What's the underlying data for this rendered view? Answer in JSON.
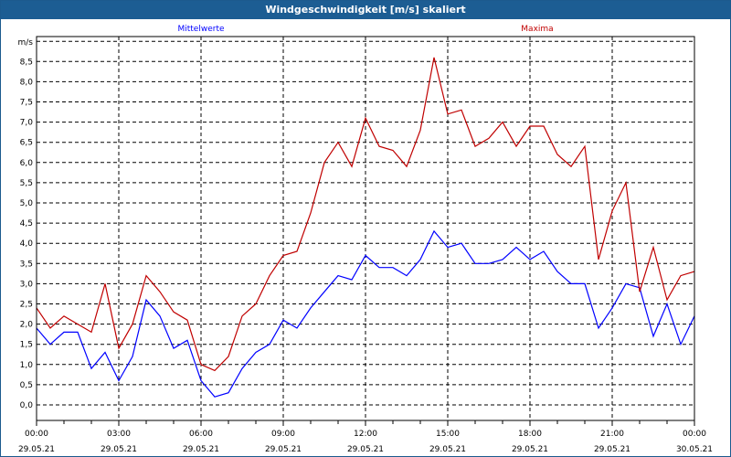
{
  "window": {
    "title": "Windgeschwindigkeit [m/s] skaliert"
  },
  "chart_data": {
    "type": "line",
    "title": "Windgeschwindigkeit [m/s] skaliert",
    "ylabel": "m/s",
    "ylim": [
      0,
      9
    ],
    "yticks": [
      "0,0",
      "0,5",
      "1,0",
      "1,5",
      "2,0",
      "2,5",
      "3,0",
      "3,5",
      "4,0",
      "4,5",
      "5,0",
      "5,5",
      "6,0",
      "6,5",
      "7,0",
      "7,5",
      "8,0",
      "8,5"
    ],
    "xlim_hours": [
      0,
      24
    ],
    "xticks": [
      {
        "time": "00:00",
        "date": "29.05.21"
      },
      {
        "time": "03:00",
        "date": "29.05.21"
      },
      {
        "time": "06:00",
        "date": "29.05.21"
      },
      {
        "time": "09:00",
        "date": "29.05.21"
      },
      {
        "time": "12:00",
        "date": "29.05.21"
      },
      {
        "time": "15:00",
        "date": "29.05.21"
      },
      {
        "time": "18:00",
        "date": "29.05.21"
      },
      {
        "time": "21:00",
        "date": "29.05.21"
      },
      {
        "time": "00:00",
        "date": "30.05.21"
      }
    ],
    "grid": true,
    "x_hours": [
      0,
      0.5,
      1,
      1.5,
      2,
      2.5,
      3,
      3.5,
      4,
      4.5,
      5,
      5.5,
      6,
      6.5,
      7,
      7.5,
      8,
      8.5,
      9,
      9.5,
      10,
      10.5,
      11,
      11.5,
      12,
      12.5,
      13,
      13.5,
      14,
      14.5,
      15,
      15.5,
      16,
      16.5,
      17,
      17.5,
      18,
      18.5,
      19,
      19.5,
      20,
      20.5,
      21,
      21.5,
      22,
      22.5,
      23,
      23.5,
      24
    ],
    "series": [
      {
        "name": "Mittelwerte",
        "color": "#0000ff",
        "values": [
          1.9,
          1.5,
          1.8,
          1.8,
          0.9,
          1.3,
          0.6,
          1.2,
          2.6,
          2.2,
          1.4,
          1.6,
          0.6,
          0.2,
          0.3,
          0.9,
          1.3,
          1.5,
          2.1,
          1.9,
          2.4,
          2.8,
          3.2,
          3.1,
          3.7,
          3.4,
          3.4,
          3.2,
          3.6,
          4.3,
          3.9,
          4.0,
          3.5,
          3.5,
          3.6,
          3.9,
          3.6,
          3.8,
          3.3,
          3.0,
          3.0,
          1.9,
          2.4,
          3.0,
          2.9,
          1.7,
          2.5,
          1.5,
          2.2
        ]
      },
      {
        "name": "Maxima",
        "color": "#c00000",
        "values": [
          2.4,
          1.9,
          2.2,
          2.0,
          1.8,
          3.0,
          1.4,
          2.0,
          3.2,
          2.8,
          2.3,
          2.1,
          1.0,
          0.85,
          1.2,
          2.2,
          2.5,
          3.2,
          3.7,
          3.8,
          4.75,
          6.0,
          6.5,
          5.9,
          7.1,
          6.4,
          6.3,
          5.9,
          6.8,
          8.6,
          7.2,
          7.3,
          6.4,
          6.6,
          7.0,
          6.4,
          6.9,
          6.9,
          6.2,
          5.9,
          6.4,
          3.6,
          4.8,
          5.5,
          2.8,
          3.9,
          2.6,
          3.2,
          3.3
        ]
      }
    ]
  }
}
